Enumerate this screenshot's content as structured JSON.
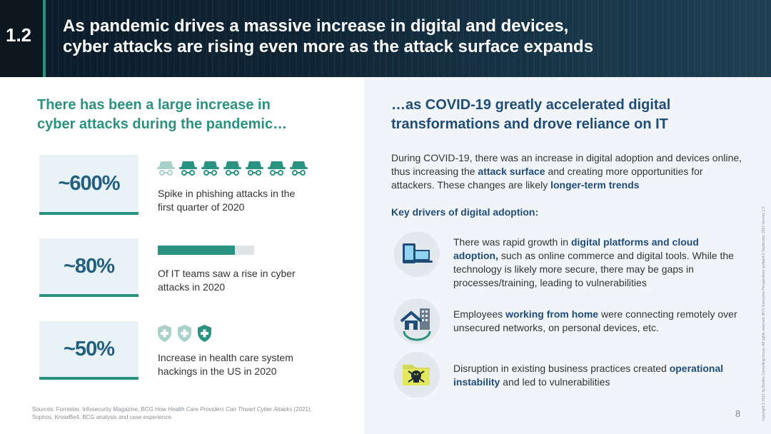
{
  "header": {
    "badge": "1.2",
    "title_line1": "As pandemic drives a massive increase in digital and devices,",
    "title_line2": "cyber attacks are rising even more as the attack surface expands"
  },
  "left": {
    "heading_line1": "There has been a large increase in",
    "heading_line2": "cyber attacks during the pandemic…",
    "stats": [
      {
        "value": "~600%",
        "desc_line1": "Spike in phishing attacks in the",
        "desc_line2": "first quarter of 2020",
        "icon": "spy-icon",
        "icon_count": 7,
        "icon_faded_count": 1
      },
      {
        "value": "~80%",
        "desc_line1": "Of IT teams saw a rise in cyber",
        "desc_line2": "attacks in 2020",
        "bar_fraction": 0.8
      },
      {
        "value": "~50%",
        "desc_line1": "Increase in health care system",
        "desc_line2": "hackings in the US in 2020",
        "icon": "medical-shield-icon",
        "icon_count": 3,
        "icon_faded_count": 2
      }
    ],
    "sources_line1_a": "Sources: Forrester, Infosecurity Magazine, BCG ",
    "sources_line1_italic": "How Health Care Providers Can Thwart Cyber Attacks",
    "sources_line1_b": " (2021),",
    "sources_line2": "Sophos, KnowBe4, BCG analysis and case experience."
  },
  "right": {
    "heading_line1": "…as COVID-19 greatly accelerated digital",
    "heading_line2": "transformations and drove reliance on IT",
    "intro_a": "During COVID-19, there was an increase in digital adoption and devices online, thus increasing the ",
    "intro_hl1": "attack surface",
    "intro_b": " and creating more opportunities for attackers. These changes are likely ",
    "intro_hl2": "longer-term trends",
    "drivers_heading": "Key drivers of digital adoption:",
    "drivers": [
      {
        "icon": "devices-icon",
        "pre": "There was rapid growth in ",
        "hl": "digital platforms and cloud adoption,",
        "post": " such as online commerce and digital tools. While the technology is likely more secure, there may be gaps in processes/training, leading to vulnerabilities"
      },
      {
        "icon": "home-office-icon",
        "pre": "Employees ",
        "hl": "working from home",
        "post": " were connecting remotely over unsecured networks, on personal devices, etc."
      },
      {
        "icon": "hacked-folder-icon",
        "pre": "Disruption in existing business practices created ",
        "hl": "operational instability",
        "post": " and led to vulnerabilities"
      }
    ]
  },
  "footer": {
    "page_number": "8",
    "copyright": "Copyright © 2021 by Boston Consulting Group. All rights reserved. BCG Executive Perspectives updated 9 September 2021 Version 1.0"
  },
  "colors": {
    "teal": "#2a9280",
    "navy": "#1f4d78",
    "stat_text": "#23607f"
  }
}
